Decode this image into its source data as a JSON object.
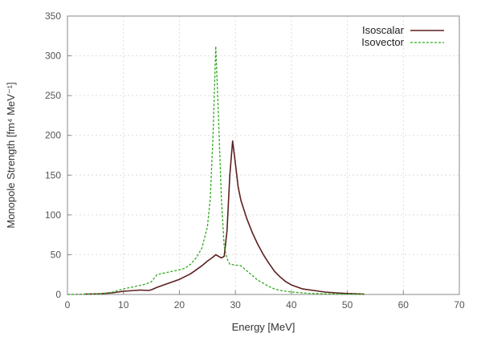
{
  "chart_data": {
    "type": "line",
    "title": "",
    "xlabel": "Energy [MeV]",
    "ylabel": "Monopole Strength [fm⁴ MeV⁻¹]",
    "xlim": [
      0,
      70
    ],
    "ylim": [
      0,
      350
    ],
    "xticks": [
      "0",
      "10",
      "20",
      "30",
      "40",
      "50",
      "60",
      "70"
    ],
    "yticks": [
      "0",
      "50",
      "100",
      "150",
      "200",
      "250",
      "300",
      "350"
    ],
    "grid": true,
    "legend_position": "top-right",
    "series": [
      {
        "name": "Isoscalar",
        "color": "#5c1f1f",
        "style": "solid",
        "points": [
          [
            3,
            0.5
          ],
          [
            6,
            1
          ],
          [
            8,
            2
          ],
          [
            10,
            4
          ],
          [
            12,
            5
          ],
          [
            13,
            5.5
          ],
          [
            14.5,
            5
          ],
          [
            15,
            6
          ],
          [
            16,
            9
          ],
          [
            18,
            14
          ],
          [
            20,
            19
          ],
          [
            22,
            26
          ],
          [
            24,
            36
          ],
          [
            25,
            42
          ],
          [
            26,
            47
          ],
          [
            26.5,
            50
          ],
          [
            27,
            48
          ],
          [
            27.5,
            46
          ],
          [
            28,
            48
          ],
          [
            28.5,
            80
          ],
          [
            29,
            150
          ],
          [
            29.5,
            193
          ],
          [
            30,
            165
          ],
          [
            30.5,
            135
          ],
          [
            31,
            118
          ],
          [
            32,
            96
          ],
          [
            33,
            78
          ],
          [
            34,
            63
          ],
          [
            35,
            50
          ],
          [
            36,
            39
          ],
          [
            37,
            29
          ],
          [
            38,
            22
          ],
          [
            39,
            16
          ],
          [
            40,
            12
          ],
          [
            42,
            7
          ],
          [
            44,
            5
          ],
          [
            46,
            3
          ],
          [
            48,
            2
          ],
          [
            50,
            1.2
          ],
          [
            53,
            0.5
          ]
        ]
      },
      {
        "name": "Isovector",
        "color": "#33aa22",
        "style": "dashed",
        "points": [
          [
            0,
            0
          ],
          [
            3,
            0.5
          ],
          [
            6,
            1
          ],
          [
            8,
            3
          ],
          [
            10,
            7
          ],
          [
            12,
            10
          ],
          [
            14,
            13
          ],
          [
            15,
            16
          ],
          [
            16,
            25
          ],
          [
            18,
            28
          ],
          [
            20,
            31
          ],
          [
            21,
            33
          ],
          [
            22,
            38
          ],
          [
            23,
            46
          ],
          [
            24,
            58
          ],
          [
            25,
            85
          ],
          [
            25.5,
            120
          ],
          [
            26,
            200
          ],
          [
            26.5,
            312
          ],
          [
            27,
            220
          ],
          [
            27.5,
            120
          ],
          [
            28,
            60
          ],
          [
            28.5,
            45
          ],
          [
            29,
            38
          ],
          [
            30,
            37
          ],
          [
            31,
            36
          ],
          [
            32,
            30
          ],
          [
            33,
            24
          ],
          [
            34,
            18
          ],
          [
            35,
            14
          ],
          [
            36,
            10
          ],
          [
            37,
            7
          ],
          [
            38,
            5
          ],
          [
            40,
            3
          ],
          [
            43,
            1.5
          ],
          [
            46,
            0.8
          ],
          [
            50,
            0.4
          ],
          [
            53,
            0.2
          ]
        ]
      }
    ]
  }
}
